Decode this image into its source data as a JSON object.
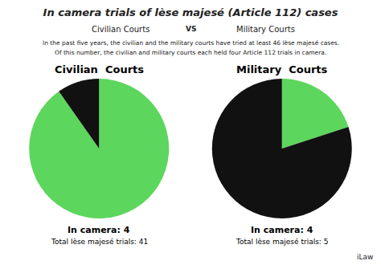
{
  "title": "In camera trials of lèse majesé (Article 112) cases",
  "annotations": [
    "Civilian Courts",
    "VS",
    "Military Courts",
    "In the past five years, the civilian and the military courts have tried at least 46 lèse majesé cases.",
    "Of this number, the civilian and military courts each held four Article 112 trials in camera.",
    "iLaw"
  ],
  "chart_data": [
    {
      "type": "pie",
      "title": "Civilian  Courts",
      "values": [
        37,
        4
      ],
      "colors": [
        "#5cd65c",
        "#111111"
      ],
      "annotations": [
        "In camera: 4",
        "Total lèse majesé trials: 41"
      ]
    },
    {
      "type": "pie",
      "title": "Military  Courts",
      "values": [
        1,
        4
      ],
      "colors": [
        "#5cd65c",
        "#111111"
      ],
      "annotations": [
        "In camera: 4",
        "Total lèse majesé trials: 5"
      ]
    }
  ]
}
